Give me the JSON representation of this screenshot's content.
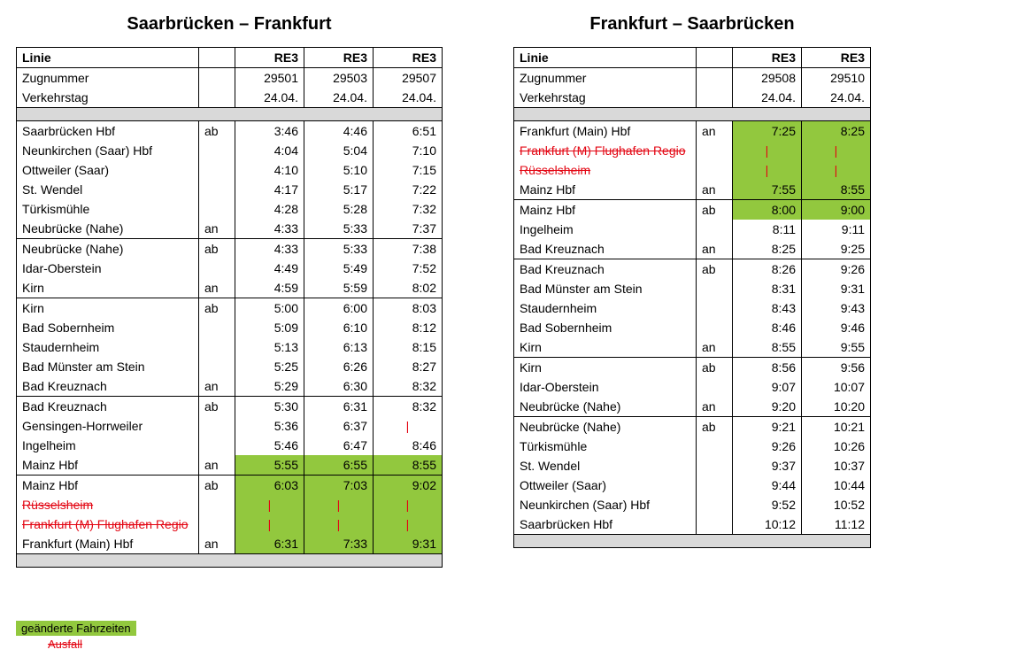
{
  "colors": {
    "highlight": "#92c83e",
    "cancel": "#e30613",
    "grid": "#000000",
    "grey": "#d9d9d9",
    "bg": "#ffffff"
  },
  "legend": {
    "changed": "geänderte Fahrzeiten",
    "cancelled": "Ausfall"
  },
  "left": {
    "title": "Saarbrücken – Frankfurt",
    "header": {
      "linie": "Linie",
      "c1": "RE3",
      "c2": "RE3",
      "c3": "RE3"
    },
    "meta": [
      {
        "label": "Zugnummer",
        "c1": "29501",
        "c2": "29503",
        "c3": "29507"
      },
      {
        "label": "Verkehrstag",
        "c1": "24.04.",
        "c2": "24.04.",
        "c3": "24.04."
      }
    ],
    "sections": [
      [
        {
          "station": "Saarbrücken Hbf",
          "anab": "ab",
          "t": [
            "3:46",
            "4:46",
            "6:51"
          ]
        },
        {
          "station": "Neunkirchen (Saar) Hbf",
          "anab": "",
          "t": [
            "4:04",
            "5:04",
            "7:10"
          ]
        },
        {
          "station": "Ottweiler (Saar)",
          "anab": "",
          "t": [
            "4:10",
            "5:10",
            "7:15"
          ]
        },
        {
          "station": "St. Wendel",
          "anab": "",
          "t": [
            "4:17",
            "5:17",
            "7:22"
          ]
        },
        {
          "station": "Türkismühle",
          "anab": "",
          "t": [
            "4:28",
            "5:28",
            "7:32"
          ]
        },
        {
          "station": "Neubrücke (Nahe)",
          "anab": "an",
          "t": [
            "4:33",
            "5:33",
            "7:37"
          ]
        }
      ],
      [
        {
          "station": "Neubrücke (Nahe)",
          "anab": "ab",
          "t": [
            "4:33",
            "5:33",
            "7:38"
          ]
        },
        {
          "station": "Idar-Oberstein",
          "anab": "",
          "t": [
            "4:49",
            "5:49",
            "7:52"
          ]
        },
        {
          "station": "Kirn",
          "anab": "an",
          "t": [
            "4:59",
            "5:59",
            "8:02"
          ]
        }
      ],
      [
        {
          "station": "Kirn",
          "anab": "ab",
          "t": [
            "5:00",
            "6:00",
            "8:03"
          ]
        },
        {
          "station": "Bad Sobernheim",
          "anab": "",
          "t": [
            "5:09",
            "6:10",
            "8:12"
          ]
        },
        {
          "station": "Staudernheim",
          "anab": "",
          "t": [
            "5:13",
            "6:13",
            "8:15"
          ]
        },
        {
          "station": "Bad Münster am Stein",
          "anab": "",
          "t": [
            "5:25",
            "6:26",
            "8:27"
          ]
        },
        {
          "station": "Bad Kreuznach",
          "anab": "an",
          "t": [
            "5:29",
            "6:30",
            "8:32"
          ]
        }
      ],
      [
        {
          "station": "Bad Kreuznach",
          "anab": "ab",
          "t": [
            "5:30",
            "6:31",
            "8:32"
          ]
        },
        {
          "station": "Gensingen-Horrweiler",
          "anab": "",
          "t": [
            "5:36",
            "6:37",
            "|"
          ],
          "pipe": [
            false,
            false,
            true
          ]
        },
        {
          "station": "Ingelheim",
          "anab": "",
          "t": [
            "5:46",
            "6:47",
            "8:46"
          ]
        },
        {
          "station": "Mainz Hbf",
          "anab": "an",
          "t": [
            "5:55",
            "6:55",
            "8:55"
          ],
          "hl": [
            true,
            true,
            true
          ]
        }
      ],
      [
        {
          "station": "Mainz Hbf",
          "anab": "ab",
          "t": [
            "6:03",
            "7:03",
            "9:02"
          ],
          "hl": [
            true,
            true,
            true
          ]
        },
        {
          "station": "Rüsselsheim",
          "anab": "",
          "t": [
            "|",
            "|",
            "|"
          ],
          "cancel": true,
          "hl": [
            true,
            true,
            true
          ],
          "pipe": [
            true,
            true,
            true
          ]
        },
        {
          "station": "Frankfurt (M) Flughafen Regio",
          "anab": "",
          "t": [
            "|",
            "|",
            "|"
          ],
          "cancel": true,
          "hl": [
            true,
            true,
            true
          ],
          "pipe": [
            true,
            true,
            true
          ]
        },
        {
          "station": "Frankfurt (Main) Hbf",
          "anab": "an",
          "t": [
            "6:31",
            "7:33",
            "9:31"
          ],
          "hl": [
            true,
            true,
            true
          ]
        }
      ]
    ]
  },
  "right": {
    "title": "Frankfurt – Saarbrücken",
    "header": {
      "linie": "Linie",
      "c1": "RE3",
      "c2": "RE3"
    },
    "meta": [
      {
        "label": "Zugnummer",
        "c1": "29508",
        "c2": "29510"
      },
      {
        "label": "Verkehrstag",
        "c1": "24.04.",
        "c2": "24.04."
      }
    ],
    "sections": [
      [
        {
          "station": "Frankfurt (Main) Hbf",
          "anab": "an",
          "t": [
            "7:25",
            "8:25"
          ],
          "hl": [
            true,
            true
          ]
        },
        {
          "station": "Frankfurt (M) Flughafen Regio",
          "anab": "",
          "t": [
            "|",
            "|"
          ],
          "cancel": true,
          "hl": [
            true,
            true
          ],
          "pipe": [
            true,
            true
          ]
        },
        {
          "station": "Rüsselsheim",
          "anab": "",
          "t": [
            "|",
            "|"
          ],
          "cancel": true,
          "hl": [
            true,
            true
          ],
          "pipe": [
            true,
            true
          ]
        },
        {
          "station": "Mainz Hbf",
          "anab": "an",
          "t": [
            "7:55",
            "8:55"
          ],
          "hl": [
            true,
            true
          ]
        }
      ],
      [
        {
          "station": "Mainz Hbf",
          "anab": "ab",
          "t": [
            "8:00",
            "9:00"
          ],
          "hl": [
            true,
            true
          ]
        },
        {
          "station": "Ingelheim",
          "anab": "",
          "t": [
            "8:11",
            "9:11"
          ]
        },
        {
          "station": "Bad Kreuznach",
          "anab": "an",
          "t": [
            "8:25",
            "9:25"
          ]
        }
      ],
      [
        {
          "station": "Bad Kreuznach",
          "anab": "ab",
          "t": [
            "8:26",
            "9:26"
          ]
        },
        {
          "station": "Bad Münster am Stein",
          "anab": "",
          "t": [
            "8:31",
            "9:31"
          ]
        },
        {
          "station": "Staudernheim",
          "anab": "",
          "t": [
            "8:43",
            "9:43"
          ]
        },
        {
          "station": "Bad Sobernheim",
          "anab": "",
          "t": [
            "8:46",
            "9:46"
          ]
        },
        {
          "station": "Kirn",
          "anab": "an",
          "t": [
            "8:55",
            "9:55"
          ]
        }
      ],
      [
        {
          "station": "Kirn",
          "anab": "ab",
          "t": [
            "8:56",
            "9:56"
          ]
        },
        {
          "station": "Idar-Oberstein",
          "anab": "",
          "t": [
            "9:07",
            "10:07"
          ]
        },
        {
          "station": "Neubrücke (Nahe)",
          "anab": "an",
          "t": [
            "9:20",
            "10:20"
          ]
        }
      ],
      [
        {
          "station": "Neubrücke (Nahe)",
          "anab": "ab",
          "t": [
            "9:21",
            "10:21"
          ]
        },
        {
          "station": "Türkismühle",
          "anab": "",
          "t": [
            "9:26",
            "10:26"
          ]
        },
        {
          "station": "St. Wendel",
          "anab": "",
          "t": [
            "9:37",
            "10:37"
          ]
        },
        {
          "station": "Ottweiler (Saar)",
          "anab": "",
          "t": [
            "9:44",
            "10:44"
          ]
        },
        {
          "station": "Neunkirchen (Saar) Hbf",
          "anab": "",
          "t": [
            "9:52",
            "10:52"
          ]
        },
        {
          "station": "Saarbrücken Hbf",
          "anab": "",
          "t": [
            "10:12",
            "11:12"
          ]
        }
      ]
    ]
  }
}
